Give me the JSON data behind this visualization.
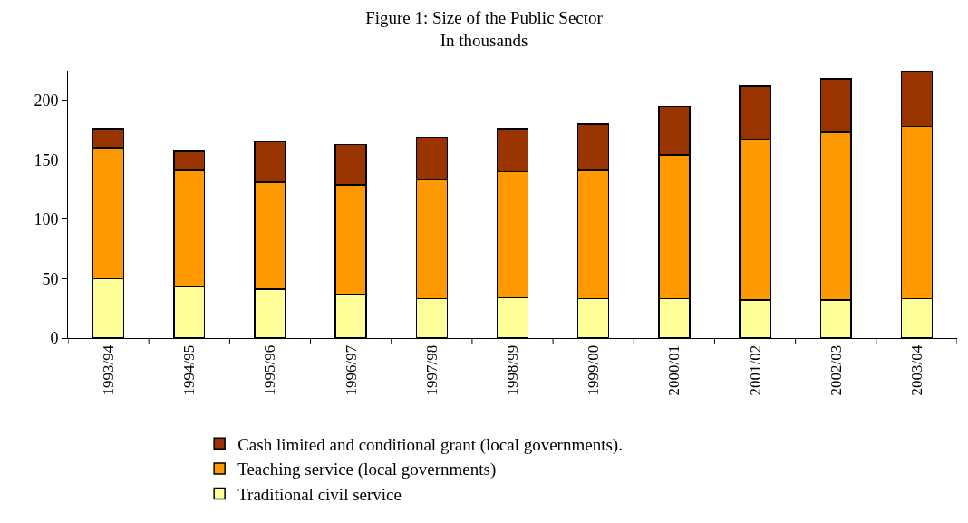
{
  "chart_data": {
    "type": "bar",
    "title": "Figure 1: Size of the Public Sector",
    "subtitle": "In thousands",
    "stacked": true,
    "legend": "bottom",
    "grid": false,
    "categories": [
      "1993/94",
      "1994/95",
      "1995/96",
      "1996/97",
      "1997/98",
      "1998/99",
      "1999/00",
      "2000/01",
      "2001/02",
      "2002/03",
      "2003/04"
    ],
    "series": [
      {
        "name": "Traditional civil service",
        "color": "#ffff99",
        "values": [
          50,
          43,
          41,
          37,
          33,
          34,
          33,
          33,
          32,
          32,
          33
        ]
      },
      {
        "name": "Teaching service (local governments)",
        "color": "#ff9900",
        "values": [
          110,
          98,
          90,
          92,
          100,
          106,
          108,
          121,
          135,
          141,
          145
        ]
      },
      {
        "name": "Cash limited and conditional grant (local governments).",
        "color": "#993300",
        "values": [
          16,
          16,
          34,
          34,
          36,
          36,
          39,
          41,
          45,
          45,
          47
        ]
      }
    ],
    "ylim": [
      0,
      225
    ],
    "yticks": [
      0,
      50,
      100,
      150,
      200
    ]
  }
}
